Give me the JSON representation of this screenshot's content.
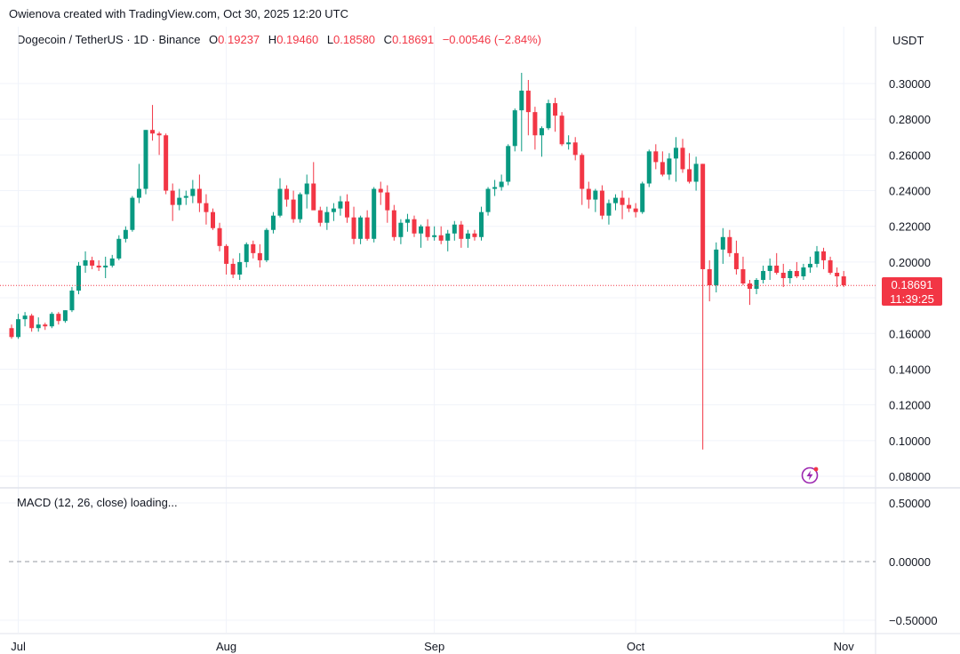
{
  "credit": "Owienova created with TradingView.com, Oct 30, 2025 12:20 UTC",
  "legend": {
    "symbol": "Dogecoin / TetherUS · 1D · Binance",
    "o_label": "O",
    "o_value": "0.19237",
    "h_label": "H",
    "h_value": "0.19460",
    "l_label": "L",
    "l_value": "0.18580",
    "c_label": "C",
    "c_value": "0.18691",
    "change": "−0.00546 (−2.84%)"
  },
  "currency": "USDT",
  "last_price": {
    "price": "0.18691",
    "countdown": "11:39:25",
    "value": 0.18691
  },
  "macd": {
    "label": "MACD (12, 26, close) loading...",
    "ticks": [
      0.5,
      0.0,
      -0.5
    ],
    "tick_labels": [
      "0.50000",
      "0.00000",
      "−0.50000"
    ]
  },
  "colors": {
    "up": "#089981",
    "down": "#f23645",
    "grid": "#f0f3fa",
    "text": "#131722"
  },
  "chart_data": {
    "type": "candlestick",
    "x_start_date": "2025-06-30",
    "x_axis": {
      "ticks": [
        {
          "label": "Jul",
          "date": "2025-07-01"
        },
        {
          "label": "Aug",
          "date": "2025-08-01"
        },
        {
          "label": "Sep",
          "date": "2025-09-01"
        },
        {
          "label": "Oct",
          "date": "2025-10-01"
        },
        {
          "label": "Nov",
          "date": "2025-11-01"
        }
      ]
    },
    "y_axis": {
      "ticks": [
        0.08,
        0.1,
        0.12,
        0.14,
        0.16,
        0.18,
        0.2,
        0.22,
        0.24,
        0.26,
        0.28,
        0.3
      ],
      "tick_labels": [
        "0.08000",
        "0.10000",
        "0.12000",
        "0.14000",
        "0.16000",
        "",
        "0.20000",
        "0.22000",
        "0.24000",
        "0.26000",
        "0.28000",
        "0.30000"
      ]
    },
    "ohlc": [
      [
        0.163,
        0.165,
        0.157,
        0.158
      ],
      [
        0.158,
        0.171,
        0.157,
        0.168
      ],
      [
        0.168,
        0.172,
        0.164,
        0.17
      ],
      [
        0.17,
        0.171,
        0.161,
        0.163
      ],
      [
        0.163,
        0.169,
        0.161,
        0.165
      ],
      [
        0.165,
        0.166,
        0.162,
        0.164
      ],
      [
        0.164,
        0.172,
        0.163,
        0.171
      ],
      [
        0.171,
        0.172,
        0.165,
        0.167
      ],
      [
        0.167,
        0.173,
        0.166,
        0.173
      ],
      [
        0.173,
        0.186,
        0.172,
        0.184
      ],
      [
        0.184,
        0.2,
        0.182,
        0.198
      ],
      [
        0.198,
        0.206,
        0.194,
        0.201
      ],
      [
        0.201,
        0.203,
        0.196,
        0.198
      ],
      [
        0.198,
        0.201,
        0.195,
        0.197
      ],
      [
        0.197,
        0.203,
        0.191,
        0.198
      ],
      [
        0.198,
        0.204,
        0.197,
        0.202
      ],
      [
        0.202,
        0.215,
        0.201,
        0.213
      ],
      [
        0.213,
        0.22,
        0.211,
        0.218
      ],
      [
        0.218,
        0.237,
        0.217,
        0.236
      ],
      [
        0.236,
        0.255,
        0.233,
        0.241
      ],
      [
        0.241,
        0.274,
        0.238,
        0.274
      ],
      [
        0.274,
        0.288,
        0.268,
        0.272
      ],
      [
        0.272,
        0.273,
        0.26,
        0.271
      ],
      [
        0.271,
        0.272,
        0.238,
        0.24
      ],
      [
        0.24,
        0.244,
        0.223,
        0.232
      ],
      [
        0.232,
        0.241,
        0.229,
        0.236
      ],
      [
        0.236,
        0.24,
        0.232,
        0.237
      ],
      [
        0.237,
        0.246,
        0.233,
        0.241
      ],
      [
        0.241,
        0.249,
        0.228,
        0.233
      ],
      [
        0.233,
        0.238,
        0.221,
        0.228
      ],
      [
        0.228,
        0.23,
        0.218,
        0.219
      ],
      [
        0.219,
        0.222,
        0.206,
        0.209
      ],
      [
        0.209,
        0.21,
        0.193,
        0.199
      ],
      [
        0.199,
        0.202,
        0.191,
        0.193
      ],
      [
        0.193,
        0.205,
        0.19,
        0.2
      ],
      [
        0.2,
        0.211,
        0.197,
        0.21
      ],
      [
        0.21,
        0.212,
        0.202,
        0.205
      ],
      [
        0.205,
        0.21,
        0.197,
        0.201
      ],
      [
        0.201,
        0.219,
        0.2,
        0.218
      ],
      [
        0.218,
        0.228,
        0.216,
        0.226
      ],
      [
        0.226,
        0.247,
        0.225,
        0.241
      ],
      [
        0.241,
        0.243,
        0.231,
        0.235
      ],
      [
        0.235,
        0.24,
        0.222,
        0.224
      ],
      [
        0.224,
        0.239,
        0.222,
        0.238
      ],
      [
        0.238,
        0.249,
        0.23,
        0.244
      ],
      [
        0.244,
        0.256,
        0.231,
        0.229
      ],
      [
        0.229,
        0.231,
        0.22,
        0.222
      ],
      [
        0.222,
        0.231,
        0.218,
        0.228
      ],
      [
        0.228,
        0.233,
        0.223,
        0.23
      ],
      [
        0.23,
        0.237,
        0.226,
        0.234
      ],
      [
        0.234,
        0.238,
        0.222,
        0.225
      ],
      [
        0.225,
        0.231,
        0.21,
        0.213
      ],
      [
        0.213,
        0.226,
        0.21,
        0.225
      ],
      [
        0.225,
        0.229,
        0.212,
        0.213
      ],
      [
        0.213,
        0.242,
        0.211,
        0.241
      ],
      [
        0.241,
        0.245,
        0.232,
        0.239
      ],
      [
        0.239,
        0.243,
        0.222,
        0.229
      ],
      [
        0.229,
        0.232,
        0.212,
        0.214
      ],
      [
        0.214,
        0.224,
        0.21,
        0.222
      ],
      [
        0.222,
        0.227,
        0.217,
        0.224
      ],
      [
        0.224,
        0.226,
        0.214,
        0.216
      ],
      [
        0.216,
        0.221,
        0.208,
        0.22
      ],
      [
        0.22,
        0.224,
        0.212,
        0.214
      ],
      [
        0.214,
        0.22,
        0.212,
        0.215
      ],
      [
        0.215,
        0.22,
        0.21,
        0.212
      ],
      [
        0.212,
        0.218,
        0.206,
        0.216
      ],
      [
        0.216,
        0.223,
        0.212,
        0.221
      ],
      [
        0.221,
        0.223,
        0.208,
        0.213
      ],
      [
        0.213,
        0.218,
        0.208,
        0.216
      ],
      [
        0.216,
        0.218,
        0.212,
        0.214
      ],
      [
        0.214,
        0.231,
        0.212,
        0.228
      ],
      [
        0.228,
        0.242,
        0.226,
        0.241
      ],
      [
        0.241,
        0.246,
        0.237,
        0.242
      ],
      [
        0.242,
        0.249,
        0.24,
        0.245
      ],
      [
        0.245,
        0.266,
        0.243,
        0.265
      ],
      [
        0.265,
        0.286,
        0.262,
        0.285
      ],
      [
        0.285,
        0.306,
        0.262,
        0.296
      ],
      [
        0.296,
        0.302,
        0.271,
        0.284
      ],
      [
        0.284,
        0.287,
        0.263,
        0.271
      ],
      [
        0.271,
        0.276,
        0.259,
        0.275
      ],
      [
        0.275,
        0.291,
        0.274,
        0.289
      ],
      [
        0.289,
        0.292,
        0.273,
        0.282
      ],
      [
        0.282,
        0.284,
        0.265,
        0.266
      ],
      [
        0.266,
        0.271,
        0.263,
        0.267
      ],
      [
        0.267,
        0.27,
        0.257,
        0.26
      ],
      [
        0.26,
        0.261,
        0.232,
        0.241
      ],
      [
        0.241,
        0.245,
        0.23,
        0.235
      ],
      [
        0.235,
        0.241,
        0.228,
        0.24
      ],
      [
        0.24,
        0.243,
        0.224,
        0.226
      ],
      [
        0.226,
        0.235,
        0.221,
        0.233
      ],
      [
        0.233,
        0.238,
        0.229,
        0.236
      ],
      [
        0.236,
        0.24,
        0.224,
        0.232
      ],
      [
        0.232,
        0.236,
        0.228,
        0.23
      ],
      [
        0.23,
        0.233,
        0.225,
        0.228
      ],
      [
        0.228,
        0.245,
        0.227,
        0.244
      ],
      [
        0.244,
        0.263,
        0.242,
        0.262
      ],
      [
        0.262,
        0.266,
        0.252,
        0.256
      ],
      [
        0.256,
        0.262,
        0.248,
        0.249
      ],
      [
        0.249,
        0.261,
        0.246,
        0.258
      ],
      [
        0.258,
        0.27,
        0.245,
        0.264
      ],
      [
        0.264,
        0.269,
        0.25,
        0.252
      ],
      [
        0.252,
        0.261,
        0.244,
        0.245
      ],
      [
        0.245,
        0.259,
        0.24,
        0.255
      ],
      [
        0.255,
        0.255,
        0.095,
        0.196
      ],
      [
        0.196,
        0.201,
        0.178,
        0.187
      ],
      [
        0.187,
        0.211,
        0.183,
        0.207
      ],
      [
        0.207,
        0.219,
        0.199,
        0.214
      ],
      [
        0.214,
        0.218,
        0.203,
        0.205
      ],
      [
        0.205,
        0.212,
        0.193,
        0.196
      ],
      [
        0.196,
        0.203,
        0.187,
        0.188
      ],
      [
        0.188,
        0.19,
        0.176,
        0.185
      ],
      [
        0.185,
        0.191,
        0.182,
        0.19
      ],
      [
        0.19,
        0.198,
        0.188,
        0.195
      ],
      [
        0.195,
        0.202,
        0.19,
        0.198
      ],
      [
        0.198,
        0.205,
        0.193,
        0.194
      ],
      [
        0.194,
        0.199,
        0.186,
        0.191
      ],
      [
        0.191,
        0.196,
        0.188,
        0.195
      ],
      [
        0.195,
        0.2,
        0.191,
        0.192
      ],
      [
        0.192,
        0.199,
        0.19,
        0.197
      ],
      [
        0.197,
        0.203,
        0.194,
        0.199
      ],
      [
        0.199,
        0.209,
        0.197,
        0.206
      ],
      [
        0.206,
        0.208,
        0.196,
        0.201
      ],
      [
        0.201,
        0.203,
        0.193,
        0.194
      ],
      [
        0.194,
        0.197,
        0.186,
        0.192
      ],
      [
        0.192,
        0.195,
        0.186,
        0.187
      ]
    ]
  }
}
